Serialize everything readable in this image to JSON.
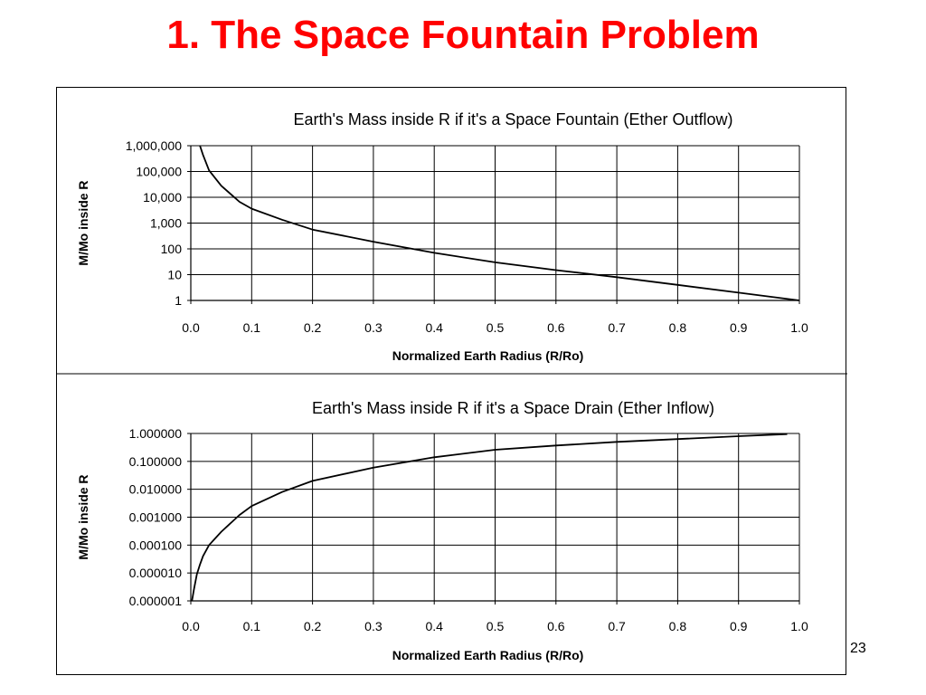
{
  "slide": {
    "title": "1. The Space Fountain Problem",
    "title_color": "#ff0000",
    "page_number": "23"
  },
  "chart_data": [
    {
      "type": "line",
      "title": "Earth's Mass inside R if it's a Space Fountain (Ether Outflow)",
      "xlabel": "Normalized Earth Radius (R/Ro)",
      "ylabel": "M/Mo inside R",
      "xlim": [
        0.0,
        1.0
      ],
      "xticks": [
        "0.0",
        "0.1",
        "0.2",
        "0.3",
        "0.4",
        "0.5",
        "0.6",
        "0.7",
        "0.8",
        "0.9",
        "1.0"
      ],
      "ylim": [
        1,
        1000000
      ],
      "yscale": "log",
      "yticks": [
        "1",
        "10",
        "100",
        "1,000",
        "10,000",
        "100,000",
        "1,000,000"
      ],
      "grid": true,
      "legend": "none",
      "series": [
        {
          "color": "#000000",
          "x": [
            0.015,
            0.02,
            0.03,
            0.05,
            0.08,
            0.1,
            0.15,
            0.2,
            0.3,
            0.4,
            0.5,
            0.6,
            0.7,
            0.8,
            0.9,
            1.0
          ],
          "y": [
            1000000,
            440000,
            110000,
            28000,
            6700,
            3600,
            1350,
            560,
            190,
            70,
            30,
            15,
            8,
            4,
            2,
            1
          ]
        }
      ]
    },
    {
      "type": "line",
      "title": "Earth's Mass inside R if it's a Space Drain (Ether Inflow)",
      "xlabel": "Normalized Earth Radius (R/Ro)",
      "ylabel": "M/Mo inside R",
      "xlim": [
        0.0,
        1.0
      ],
      "xticks": [
        "0.0",
        "0.1",
        "0.2",
        "0.3",
        "0.4",
        "0.5",
        "0.6",
        "0.7",
        "0.8",
        "0.9",
        "1.0"
      ],
      "ylim": [
        1e-06,
        1
      ],
      "yscale": "log",
      "yticks": [
        "0.000001",
        "0.000010",
        "0.000100",
        "0.001000",
        "0.010000",
        "0.100000",
        "1.000000"
      ],
      "grid": true,
      "legend": "none",
      "series": [
        {
          "color": "#000000",
          "x": [
            0.002,
            0.005,
            0.01,
            0.015,
            0.02,
            0.03,
            0.05,
            0.08,
            0.1,
            0.15,
            0.2,
            0.3,
            0.4,
            0.5,
            0.6,
            0.7,
            0.8,
            0.9,
            0.98
          ],
          "y": [
            1e-06,
            2.5e-06,
            9e-06,
            2e-05,
            4e-05,
            0.0001,
            0.0003,
            0.0012,
            0.0025,
            0.008,
            0.02,
            0.06,
            0.14,
            0.26,
            0.37,
            0.5,
            0.63,
            0.8,
            0.95
          ]
        }
      ]
    }
  ]
}
